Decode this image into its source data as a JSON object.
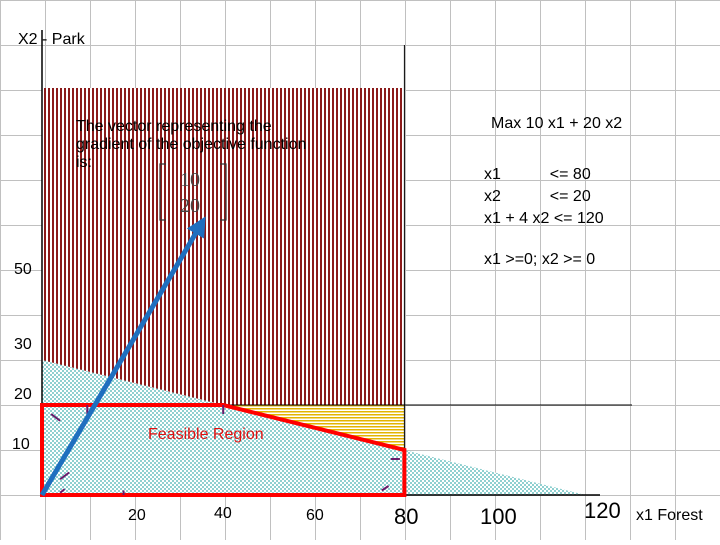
{
  "axes": {
    "ylabel": "X2 - Park",
    "xlabel": "x1 Forest",
    "x_ticks": [
      "20",
      "40",
      "60",
      "80",
      "100",
      "120"
    ],
    "y_ticks": [
      "10",
      "20",
      "30",
      "50"
    ]
  },
  "objective": "Max 10 x1 + 20 x2",
  "constraints": [
    "x1           <= 80",
    "x2           <= 20",
    "x1 + 4 x2 <= 120"
  ],
  "nonnegativity": "x1 >=0; x2 >= 0",
  "gradient_note": {
    "text": "The vector representing the gradient of the objective function is:",
    "vector": [
      "10",
      "20"
    ]
  },
  "feasible_label": "Feasible Region",
  "chart_data": {
    "type": "diagram",
    "objective_coefficients": [
      10,
      20
    ],
    "constraint_boundaries": [
      {
        "name": "x1 <= 80",
        "x": 80
      },
      {
        "name": "x2 <= 20",
        "y": 20
      },
      {
        "name": "x1 + 4 x2 <= 120",
        "points": [
          [
            0,
            30
          ],
          [
            120,
            0
          ]
        ]
      }
    ],
    "feasible_region_vertices": [
      [
        0,
        0
      ],
      [
        0,
        20
      ],
      [
        40,
        20
      ],
      [
        80,
        10
      ],
      [
        80,
        0
      ]
    ],
    "gradient_vector": {
      "from": [
        0,
        0
      ],
      "to": [
        35,
        60
      ]
    },
    "colors": {
      "feasible_boundary": "#ff0000",
      "gradient_arrow": "#1f6fbf",
      "infeasible_hatch": "#8b1a1a",
      "excess_hatch": "#d4a017",
      "region_fill": "#b9e3e3",
      "grid": "#c0c0c0"
    }
  }
}
